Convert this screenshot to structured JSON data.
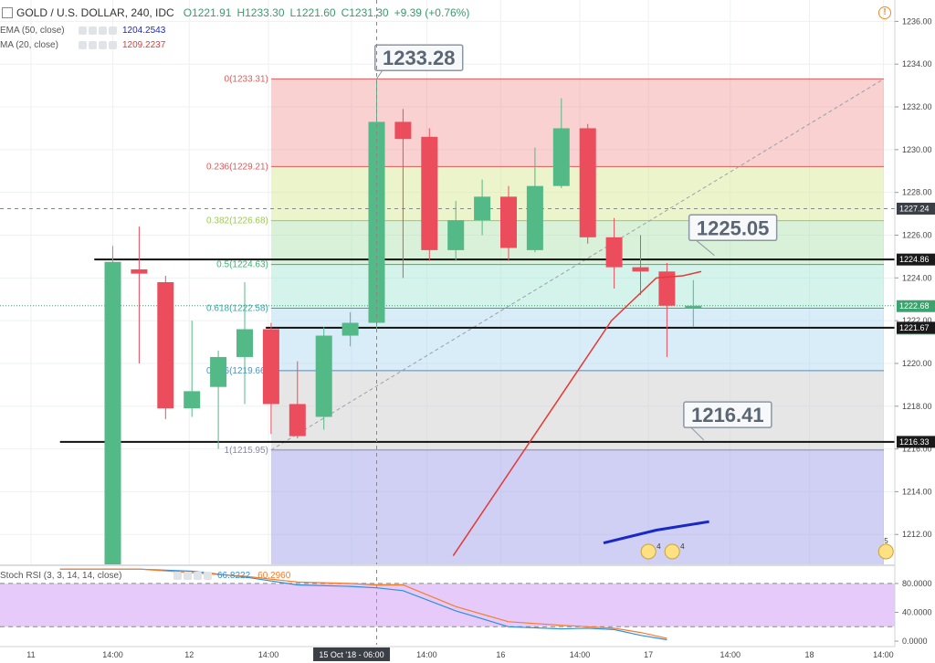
{
  "header": {
    "symbol": "GOLD / U.S. DOLLAR, 240, IDC",
    "o": "O1221.91",
    "h": "H1233.30",
    "l": "L1221.60",
    "c": "C1231.30",
    "change": "+9.39 (+0.76%)"
  },
  "indicators": {
    "ema": {
      "label": "EMA (50, close)",
      "value": "1204.2543",
      "color": "#1a28c8"
    },
    "ma": {
      "label": "MA (20, close)",
      "value": "1209.2237",
      "color": "#e53935"
    },
    "stoch": {
      "label": "Stoch RSI (3, 3, 14, 14, close)",
      "k": "66.8222",
      "d": "60.2960",
      "k_color": "#2f8fd8",
      "d_color": "#f57c2b"
    }
  },
  "chart_data": [
    {
      "type": "candlestick",
      "title": "GOLD / U.S. DOLLAR, 240, IDC",
      "ylim": [
        1210.6,
        1237
      ],
      "y_ticks": [
        "1212.00",
        "1214.00",
        "1216.00",
        "1218.00",
        "1220.00",
        "1222.00",
        "1224.00",
        "1226.00",
        "1228.00",
        "1230.00",
        "1232.00",
        "1234.00",
        "1236.00"
      ],
      "x_tick_labels": [
        "11",
        "14:00",
        "12",
        "14:00",
        "15 Oct '18 - 06:00",
        "14:00",
        "16",
        "14:00",
        "17",
        "14:00",
        "18",
        "14:00"
      ],
      "candles": [
        {
          "x": 1,
          "o": 1210,
          "h": 1225.5,
          "l": 1209,
          "c": 1224.75
        },
        {
          "x": 2,
          "o": 1224.4,
          "h": 1226.4,
          "l": 1220,
          "c": 1224.2
        },
        {
          "x": 3,
          "o": 1223.8,
          "h": 1224.1,
          "l": 1217.4,
          "c": 1217.9
        },
        {
          "x": 4,
          "o": 1217.9,
          "h": 1222.0,
          "l": 1217.5,
          "c": 1218.7
        },
        {
          "x": 5,
          "o": 1218.9,
          "h": 1220.6,
          "l": 1216.0,
          "c": 1220.3
        },
        {
          "x": 6,
          "o": 1220.3,
          "h": 1223.8,
          "l": 1218.1,
          "c": 1221.6
        },
        {
          "x": 7,
          "o": 1221.6,
          "h": 1221.9,
          "l": 1216.7,
          "c": 1218.1
        },
        {
          "x": 8,
          "o": 1218.1,
          "h": 1220.1,
          "l": 1216.5,
          "c": 1216.6
        },
        {
          "x": 9,
          "o": 1217.5,
          "h": 1221.7,
          "l": 1216.9,
          "c": 1221.3
        },
        {
          "x": 10,
          "o": 1221.3,
          "h": 1222.4,
          "l": 1220.8,
          "c": 1221.9
        },
        {
          "x": 11,
          "o": 1221.9,
          "h": 1233.3,
          "l": 1221.6,
          "c": 1231.3
        },
        {
          "x": 12,
          "o": 1231.3,
          "h": 1231.9,
          "l": 1224.0,
          "c": 1230.5
        },
        {
          "x": 13,
          "o": 1230.6,
          "h": 1231.0,
          "l": 1224.8,
          "c": 1225.3
        },
        {
          "x": 14,
          "o": 1225.3,
          "h": 1227.6,
          "l": 1224.8,
          "c": 1226.7
        },
        {
          "x": 15,
          "o": 1226.7,
          "h": 1228.6,
          "l": 1226.0,
          "c": 1227.8
        },
        {
          "x": 16,
          "o": 1227.8,
          "h": 1228.3,
          "l": 1224.8,
          "c": 1225.4
        },
        {
          "x": 17,
          "o": 1225.3,
          "h": 1230.1,
          "l": 1225.2,
          "c": 1228.3
        },
        {
          "x": 18,
          "o": 1228.3,
          "h": 1232.4,
          "l": 1228.2,
          "c": 1231.0
        },
        {
          "x": 19,
          "o": 1231.0,
          "h": 1231.2,
          "l": 1225.6,
          "c": 1225.9
        },
        {
          "x": 20,
          "o": 1225.9,
          "h": 1226.8,
          "l": 1223.5,
          "c": 1224.5
        },
        {
          "x": 21,
          "o": 1224.5,
          "h": 1226.0,
          "l": 1223.2,
          "c": 1224.3
        },
        {
          "x": 22,
          "o": 1224.3,
          "h": 1224.7,
          "l": 1220.3,
          "c": 1222.7
        },
        {
          "x": 23,
          "o": 1222.6,
          "h": 1223.9,
          "l": 1221.7,
          "c": 1222.7
        }
      ],
      "ma_line": [
        [
          13.9,
          1211
        ],
        [
          19.9,
          1222
        ],
        [
          21.6,
          1224
        ],
        [
          22.6,
          1224.1
        ],
        [
          23.3,
          1224.3
        ]
      ],
      "ema_line": [
        [
          19.6,
          1211.6
        ],
        [
          21.6,
          1212.2
        ],
        [
          23.6,
          1212.6
        ]
      ],
      "fibonacci": {
        "x_start": 7,
        "x_end": 24.8,
        "levels": [
          {
            "ratio": "0",
            "price": 1233.31,
            "label": "0(1233.31)",
            "color": "#e05a5a"
          },
          {
            "ratio": "0.236",
            "price": 1229.21,
            "label": "0.236(1229.21)",
            "color": "#e05a5a"
          },
          {
            "ratio": "0.382",
            "price": 1226.68,
            "label": "0.382(1226.68)",
            "color": "#9ccc4a"
          },
          {
            "ratio": "0.5",
            "price": 1224.63,
            "label": "0.5(1224.63)",
            "color": "#3cb371"
          },
          {
            "ratio": "0.618",
            "price": 1222.58,
            "label": "0.618(1222.58)",
            "color": "#3aa6a6"
          },
          {
            "ratio": "0.786",
            "price": 1219.66,
            "label": "0.786(1219.66)",
            "color": "#4a90c8"
          },
          {
            "ratio": "1",
            "price": 1215.95,
            "label": "1(1215.95)",
            "color": "#8888aa"
          }
        ]
      },
      "horizontal_lines": [
        {
          "price": 1224.86,
          "from_x": 0.3,
          "label": "1224.86"
        },
        {
          "price": 1221.67,
          "from_x": 6.8,
          "label": "1221.67"
        },
        {
          "price": 1216.33,
          "from_x": -1,
          "label": "1216.33"
        }
      ],
      "callouts": [
        {
          "text": "1233.28",
          "x": 12.6,
          "price": 1234.3,
          "anchor_x": 11,
          "anchor_price": 1233.31
        },
        {
          "text": "1225.05",
          "x": 24.5,
          "price": 1226.35,
          "anchor_x": 23.8,
          "anchor_price": 1225.05
        },
        {
          "text": "1216.41",
          "x": 24.3,
          "price": 1217.6,
          "anchor_x": 23.4,
          "anchor_price": 1216.41
        }
      ],
      "price_labels": [
        {
          "value": "1227.24",
          "price": 1227.24,
          "bg": "#3b3f46"
        },
        {
          "value": "1224.86",
          "price": 1224.86,
          "bg": "#1a1a1a"
        },
        {
          "value": "1222.68",
          "price": 1222.68,
          "bg": "#3ca36e"
        },
        {
          "value": "02:19:06",
          "price": 1221.93,
          "bg": "#3ca36e"
        },
        {
          "value": "1221.67",
          "price": 1221.67,
          "bg": "#1a1a1a"
        },
        {
          "value": "1216.33",
          "price": 1216.33,
          "bg": "#1a1a1a"
        }
      ],
      "crosshair": {
        "x": 11,
        "price": 1227.24
      }
    },
    {
      "type": "line",
      "title": "Stoch RSI (3, 3, 14, 14, close)",
      "ylim": [
        -5,
        104
      ],
      "y_ticks": [
        "80.0000",
        "40.0000",
        "0.0000"
      ],
      "bands": [
        20,
        80
      ],
      "series": [
        {
          "name": "K",
          "color": "#2f8fd8",
          "x": [
            -1,
            2,
            4,
            6,
            8,
            10,
            11,
            12,
            14,
            16,
            18,
            19,
            20,
            21,
            22
          ],
          "values": [
            100,
            100,
            97,
            89,
            78,
            76,
            74,
            70,
            42,
            20,
            17,
            18,
            16,
            8,
            2
          ]
        },
        {
          "name": "D",
          "color": "#f57c2b",
          "x": [
            -1,
            2,
            4,
            6,
            8,
            10,
            11,
            12,
            14,
            16,
            18,
            19,
            20,
            21,
            22
          ],
          "values": [
            100,
            100,
            95,
            90,
            82,
            80,
            78,
            78,
            48,
            27,
            22,
            20,
            18,
            12,
            4
          ]
        }
      ]
    }
  ]
}
